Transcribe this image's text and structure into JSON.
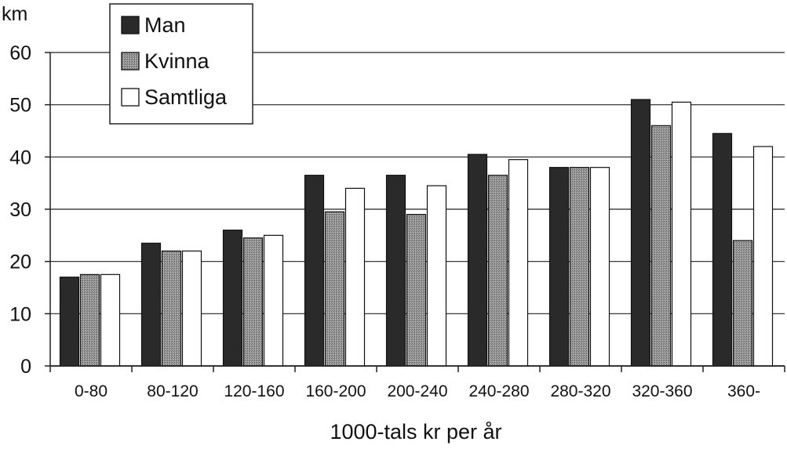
{
  "chart_data": {
    "type": "bar",
    "title": "",
    "unit_label": "km",
    "xlabel": "1000-tals kr per år",
    "ylabel": "",
    "ylim": [
      0,
      60
    ],
    "yticks": [
      0,
      10,
      20,
      30,
      40,
      50,
      60
    ],
    "grid": true,
    "legend_position": "top-left",
    "categories": [
      "0-80",
      "80-120",
      "120-160",
      "160-200",
      "200-240",
      "240-280",
      "280-320",
      "320-360",
      "360-"
    ],
    "series": [
      {
        "name": "Man",
        "color": "#2a2a2a",
        "values": [
          17,
          23.5,
          26,
          36.5,
          36.5,
          40.5,
          38,
          51,
          44.5
        ]
      },
      {
        "name": "Kvinna",
        "color": "#8e8e8e",
        "values": [
          17.5,
          22,
          24.5,
          29.5,
          29,
          36.5,
          38,
          46,
          24
        ]
      },
      {
        "name": "Samtliga",
        "color": "#ffffff",
        "values": [
          17.5,
          22,
          25,
          34,
          34.5,
          39.5,
          38,
          50.5,
          42
        ]
      }
    ]
  }
}
